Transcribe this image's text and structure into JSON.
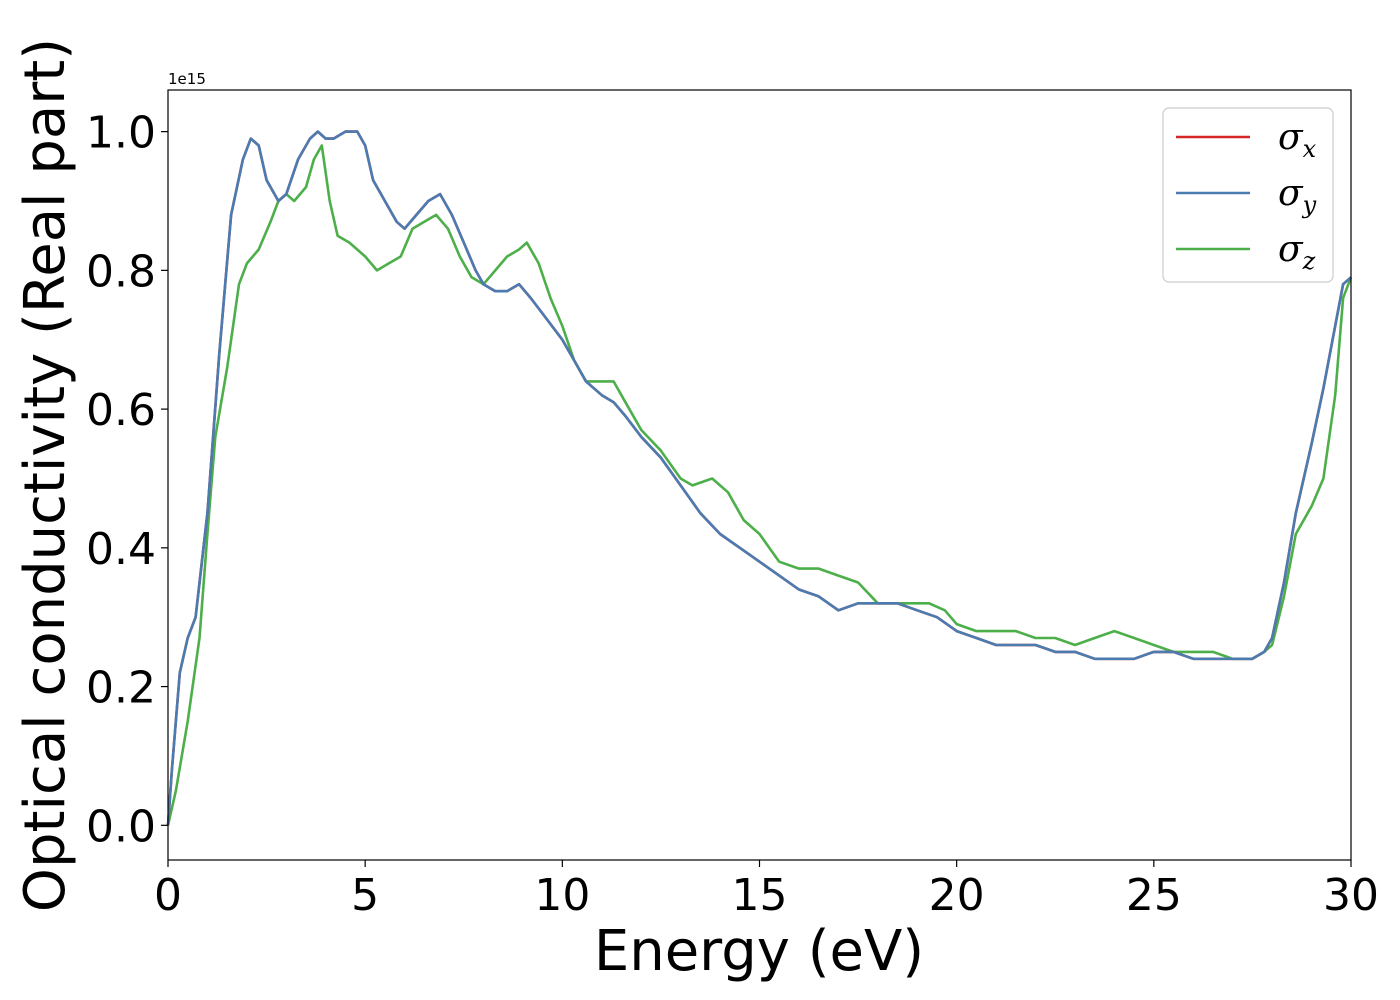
{
  "chart_data": {
    "type": "line",
    "xlabel": "Energy (eV)",
    "ylabel": "Optical conductivity (Real part)",
    "y_offset_label": "1e15",
    "xlim": [
      0,
      30
    ],
    "ylim": [
      -0.05,
      1.06
    ],
    "x_ticks": [
      0,
      5,
      10,
      15,
      20,
      25,
      30
    ],
    "x_tick_labels": [
      "0",
      "5",
      "10",
      "15",
      "20",
      "25",
      "30"
    ],
    "y_ticks": [
      0.0,
      0.2,
      0.4,
      0.6,
      0.8,
      1.0
    ],
    "y_tick_labels": [
      "0.0",
      "0.2",
      "0.4",
      "0.6",
      "0.8",
      "1.0"
    ],
    "grid": false,
    "legend_position": "top-right",
    "series": [
      {
        "name": "σx",
        "symbol": "σ",
        "subscript": "x",
        "color": "#d62728",
        "x": [
          0,
          0.1,
          0.3,
          0.5,
          0.7,
          1.0,
          1.3,
          1.6,
          1.9,
          2.1,
          2.3,
          2.5,
          2.8,
          3.0,
          3.3,
          3.6,
          3.8,
          4.0,
          4.2,
          4.5,
          4.8,
          5.0,
          5.2,
          5.5,
          5.8,
          6.0,
          6.3,
          6.6,
          6.9,
          7.2,
          7.5,
          7.8,
          8.0,
          8.3,
          8.6,
          8.9,
          9.2,
          9.6,
          10.0,
          10.3,
          10.6,
          11.0,
          11.3,
          11.6,
          12.0,
          12.5,
          13.0,
          13.5,
          14.0,
          14.5,
          15.0,
          15.5,
          16.0,
          16.5,
          17.0,
          17.5,
          18.0,
          18.5,
          19.0,
          19.5,
          20.0,
          20.5,
          21.0,
          21.5,
          22.0,
          22.5,
          23.0,
          23.5,
          24.0,
          24.5,
          25.0,
          25.5,
          26.0,
          26.5,
          27.0,
          27.5,
          27.8,
          28.0,
          28.3,
          28.6,
          29.0,
          29.3,
          29.6,
          29.8,
          30.0
        ],
        "y": [
          0.0,
          0.08,
          0.22,
          0.27,
          0.3,
          0.45,
          0.68,
          0.88,
          0.96,
          0.99,
          0.98,
          0.93,
          0.9,
          0.91,
          0.96,
          0.99,
          1.0,
          0.99,
          0.99,
          1.0,
          1.0,
          0.98,
          0.93,
          0.9,
          0.87,
          0.86,
          0.88,
          0.9,
          0.91,
          0.88,
          0.84,
          0.8,
          0.78,
          0.77,
          0.77,
          0.78,
          0.76,
          0.73,
          0.7,
          0.67,
          0.64,
          0.62,
          0.61,
          0.59,
          0.56,
          0.53,
          0.49,
          0.45,
          0.42,
          0.4,
          0.38,
          0.36,
          0.34,
          0.33,
          0.31,
          0.32,
          0.32,
          0.32,
          0.31,
          0.3,
          0.28,
          0.27,
          0.26,
          0.26,
          0.26,
          0.25,
          0.25,
          0.24,
          0.24,
          0.24,
          0.25,
          0.25,
          0.24,
          0.24,
          0.24,
          0.24,
          0.25,
          0.27,
          0.35,
          0.45,
          0.55,
          0.63,
          0.72,
          0.78,
          0.79
        ]
      },
      {
        "name": "σy",
        "symbol": "σ",
        "subscript": "y",
        "color": "#4a7bb1",
        "x": [
          0,
          0.1,
          0.3,
          0.5,
          0.7,
          1.0,
          1.3,
          1.6,
          1.9,
          2.1,
          2.3,
          2.5,
          2.8,
          3.0,
          3.3,
          3.6,
          3.8,
          4.0,
          4.2,
          4.5,
          4.8,
          5.0,
          5.2,
          5.5,
          5.8,
          6.0,
          6.3,
          6.6,
          6.9,
          7.2,
          7.5,
          7.8,
          8.0,
          8.3,
          8.6,
          8.9,
          9.2,
          9.6,
          10.0,
          10.3,
          10.6,
          11.0,
          11.3,
          11.6,
          12.0,
          12.5,
          13.0,
          13.5,
          14.0,
          14.5,
          15.0,
          15.5,
          16.0,
          16.5,
          17.0,
          17.5,
          18.0,
          18.5,
          19.0,
          19.5,
          20.0,
          20.5,
          21.0,
          21.5,
          22.0,
          22.5,
          23.0,
          23.5,
          24.0,
          24.5,
          25.0,
          25.5,
          26.0,
          26.5,
          27.0,
          27.5,
          27.8,
          28.0,
          28.3,
          28.6,
          29.0,
          29.3,
          29.6,
          29.8,
          30.0
        ],
        "y": [
          0.0,
          0.08,
          0.22,
          0.27,
          0.3,
          0.45,
          0.68,
          0.88,
          0.96,
          0.99,
          0.98,
          0.93,
          0.9,
          0.91,
          0.96,
          0.99,
          1.0,
          0.99,
          0.99,
          1.0,
          1.0,
          0.98,
          0.93,
          0.9,
          0.87,
          0.86,
          0.88,
          0.9,
          0.91,
          0.88,
          0.84,
          0.8,
          0.78,
          0.77,
          0.77,
          0.78,
          0.76,
          0.73,
          0.7,
          0.67,
          0.64,
          0.62,
          0.61,
          0.59,
          0.56,
          0.53,
          0.49,
          0.45,
          0.42,
          0.4,
          0.38,
          0.36,
          0.34,
          0.33,
          0.31,
          0.32,
          0.32,
          0.32,
          0.31,
          0.3,
          0.28,
          0.27,
          0.26,
          0.26,
          0.26,
          0.25,
          0.25,
          0.24,
          0.24,
          0.24,
          0.25,
          0.25,
          0.24,
          0.24,
          0.24,
          0.24,
          0.25,
          0.27,
          0.35,
          0.45,
          0.55,
          0.63,
          0.72,
          0.78,
          0.79
        ]
      },
      {
        "name": "σz",
        "symbol": "σ",
        "subscript": "z",
        "color": "#4daf4a",
        "x": [
          0,
          0.2,
          0.5,
          0.8,
          1.0,
          1.2,
          1.5,
          1.8,
          2.0,
          2.3,
          2.6,
          2.8,
          3.0,
          3.2,
          3.5,
          3.7,
          3.9,
          4.1,
          4.3,
          4.6,
          5.0,
          5.3,
          5.6,
          5.9,
          6.2,
          6.5,
          6.8,
          7.1,
          7.4,
          7.7,
          8.0,
          8.3,
          8.6,
          8.9,
          9.1,
          9.4,
          9.7,
          10.0,
          10.3,
          10.6,
          11.0,
          11.3,
          11.6,
          12.0,
          12.5,
          13.0,
          13.3,
          13.8,
          14.2,
          14.6,
          15.0,
          15.5,
          16.0,
          16.5,
          17.0,
          17.5,
          18.0,
          18.5,
          18.9,
          19.3,
          19.7,
          20.0,
          20.5,
          21.0,
          21.5,
          22.0,
          22.5,
          23.0,
          23.5,
          24.0,
          24.5,
          25.0,
          25.5,
          26.0,
          26.5,
          27.0,
          27.5,
          27.8,
          28.0,
          28.3,
          28.6,
          29.0,
          29.3,
          29.6,
          29.8,
          30.0
        ],
        "y": [
          0.0,
          0.05,
          0.15,
          0.27,
          0.42,
          0.56,
          0.66,
          0.78,
          0.81,
          0.83,
          0.87,
          0.9,
          0.91,
          0.9,
          0.92,
          0.96,
          0.98,
          0.9,
          0.85,
          0.84,
          0.82,
          0.8,
          0.81,
          0.82,
          0.86,
          0.87,
          0.88,
          0.86,
          0.82,
          0.79,
          0.78,
          0.8,
          0.82,
          0.83,
          0.84,
          0.81,
          0.76,
          0.72,
          0.67,
          0.64,
          0.64,
          0.64,
          0.61,
          0.57,
          0.54,
          0.5,
          0.49,
          0.5,
          0.48,
          0.44,
          0.42,
          0.38,
          0.37,
          0.37,
          0.36,
          0.35,
          0.32,
          0.32,
          0.32,
          0.32,
          0.31,
          0.29,
          0.28,
          0.28,
          0.28,
          0.27,
          0.27,
          0.26,
          0.27,
          0.28,
          0.27,
          0.26,
          0.25,
          0.25,
          0.25,
          0.24,
          0.24,
          0.25,
          0.26,
          0.33,
          0.42,
          0.46,
          0.5,
          0.62,
          0.76,
          0.79
        ]
      }
    ]
  }
}
